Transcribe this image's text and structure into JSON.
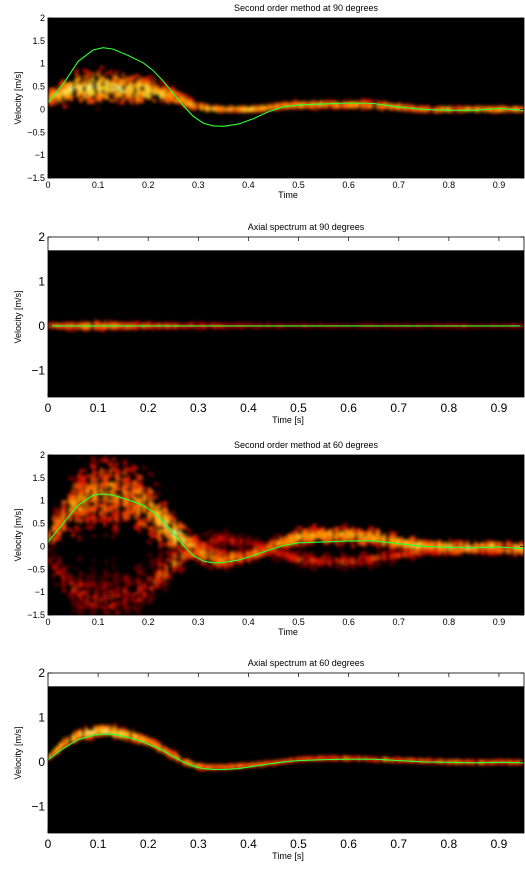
{
  "chart_data": [
    {
      "type": "heatmap",
      "title": "Second order method at 90 degrees",
      "xlabel": "Time",
      "ylabel": "Velocity [m/s]",
      "xlim": [
        0,
        0.95
      ],
      "ylim": [
        -1.5,
        2
      ],
      "x_ticks": [
        "0",
        "0.1",
        "0.2",
        "0.3",
        "0.4",
        "0.5",
        "0.6",
        "0.7",
        "0.8",
        "0.9"
      ],
      "y_ticks": [
        "−1.5",
        "−1",
        "−0.5",
        "0",
        "0.5",
        "1",
        "1.5",
        "2"
      ],
      "background": "#000000",
      "intensity_colormap": [
        "#5a0000",
        "#b00000",
        "#ff3000",
        "#ff9000",
        "#ffe040"
      ],
      "series": [
        {
          "color": "#33ff33",
          "x": [
            0,
            0.03,
            0.06,
            0.09,
            0.11,
            0.13,
            0.16,
            0.19,
            0.21,
            0.23,
            0.25,
            0.27,
            0.29,
            0.31,
            0.33,
            0.35,
            0.38,
            0.41,
            0.44,
            0.47,
            0.5,
            0.55,
            0.6,
            0.65,
            0.7,
            0.75,
            0.8,
            0.85,
            0.9,
            0.95
          ],
          "y": [
            0.15,
            0.55,
            1.05,
            1.3,
            1.35,
            1.32,
            1.18,
            1.02,
            0.85,
            0.62,
            0.35,
            0.08,
            -0.15,
            -0.3,
            -0.36,
            -0.37,
            -0.32,
            -0.2,
            -0.05,
            0.06,
            0.1,
            0.12,
            0.14,
            0.13,
            0.05,
            0.0,
            -0.02,
            -0.02,
            0.02,
            -0.02
          ]
        }
      ],
      "spectrum_ridge": {
        "x": [
          0,
          0.05,
          0.1,
          0.15,
          0.2,
          0.25,
          0.3,
          0.35,
          0.4,
          0.45,
          0.5,
          0.55,
          0.6,
          0.65,
          0.7,
          0.75,
          0.8,
          0.85,
          0.9,
          0.95
        ],
        "center": [
          0.25,
          0.45,
          0.5,
          0.45,
          0.4,
          0.3,
          0.05,
          0.0,
          0.0,
          0.05,
          0.1,
          0.1,
          0.1,
          0.1,
          0.05,
          0.0,
          0.0,
          0.0,
          0.0,
          0.0
        ],
        "spread": [
          0.25,
          0.5,
          0.55,
          0.5,
          0.45,
          0.3,
          0.12,
          0.08,
          0.08,
          0.1,
          0.12,
          0.12,
          0.12,
          0.12,
          0.1,
          0.08,
          0.08,
          0.08,
          0.08,
          0.08
        ],
        "intensity": [
          0.7,
          0.85,
          0.9,
          0.85,
          0.8,
          0.7,
          0.75,
          0.8,
          0.8,
          0.75,
          0.7,
          0.7,
          0.7,
          0.7,
          0.7,
          0.7,
          0.7,
          0.7,
          0.7,
          0.7
        ]
      },
      "mirror": false
    },
    {
      "type": "heatmap",
      "title": "Axial spectrum at 90 degrees",
      "xlabel": "Time [s]",
      "ylabel": "Velocity [m/s]",
      "xlim": [
        0,
        0.95
      ],
      "ylim": [
        -1.6,
        2
      ],
      "data_top": 1.7,
      "x_ticks": [
        "0",
        "0.1",
        "0.2",
        "0.3",
        "0.4",
        "0.5",
        "0.6",
        "0.7",
        "0.8",
        "0.9"
      ],
      "y_ticks": [
        "−1",
        "0",
        "1",
        "2"
      ],
      "background": "#000000",
      "series": [
        {
          "color": "#33ff33",
          "x": [
            0,
            0.95
          ],
          "y": [
            0,
            0
          ]
        }
      ],
      "spectrum_ridge": {
        "x": [
          0,
          0.05,
          0.1,
          0.15,
          0.2,
          0.25,
          0.3,
          0.35,
          0.4,
          0.45,
          0.5,
          0.6,
          0.7,
          0.8,
          0.9,
          0.95
        ],
        "center": [
          0,
          0,
          0,
          0,
          0,
          0,
          0,
          0,
          0,
          0,
          0,
          0,
          0,
          0,
          0,
          0
        ],
        "spread": [
          0.08,
          0.12,
          0.15,
          0.13,
          0.1,
          0.08,
          0.07,
          0.06,
          0.05,
          0.04,
          0.03,
          0.03,
          0.03,
          0.03,
          0.03,
          0.03
        ],
        "intensity": [
          0.55,
          0.6,
          0.65,
          0.6,
          0.5,
          0.45,
          0.4,
          0.35,
          0.3,
          0.25,
          0.2,
          0.2,
          0.2,
          0.2,
          0.2,
          0.2
        ]
      },
      "mirror": false
    },
    {
      "type": "heatmap",
      "title": "Second order method at 60 degrees",
      "xlabel": "Time",
      "ylabel": "Velocity [m/s]",
      "xlim": [
        0,
        0.95
      ],
      "ylim": [
        -1.5,
        2
      ],
      "x_ticks": [
        "0",
        "0.1",
        "0.2",
        "0.3",
        "0.4",
        "0.5",
        "0.6",
        "0.7",
        "0.8",
        "0.9"
      ],
      "y_ticks": [
        "−1.5",
        "−1",
        "−0.5",
        "0",
        "0.5",
        "1",
        "1.5",
        "2"
      ],
      "background": "#000000",
      "series": [
        {
          "color": "#33ff33",
          "x": [
            0,
            0.03,
            0.06,
            0.09,
            0.11,
            0.13,
            0.16,
            0.19,
            0.21,
            0.23,
            0.25,
            0.27,
            0.29,
            0.31,
            0.33,
            0.35,
            0.38,
            0.41,
            0.44,
            0.47,
            0.5,
            0.55,
            0.6,
            0.65,
            0.7,
            0.75,
            0.8,
            0.85,
            0.9,
            0.95
          ],
          "y": [
            0.1,
            0.5,
            0.9,
            1.12,
            1.15,
            1.12,
            1.02,
            0.9,
            0.75,
            0.55,
            0.3,
            0.02,
            -0.2,
            -0.32,
            -0.36,
            -0.35,
            -0.3,
            -0.2,
            -0.08,
            0.02,
            0.08,
            0.1,
            0.12,
            0.12,
            0.06,
            0.0,
            -0.02,
            -0.03,
            -0.01,
            -0.05
          ]
        }
      ],
      "spectrum_ridge": {
        "x": [
          0,
          0.05,
          0.1,
          0.15,
          0.2,
          0.25,
          0.3,
          0.35,
          0.4,
          0.45,
          0.5,
          0.55,
          0.6,
          0.65,
          0.7,
          0.75,
          0.8,
          0.85,
          0.9,
          0.95
        ],
        "center": [
          0.2,
          0.9,
          1.2,
          1.1,
          0.9,
          0.3,
          -0.1,
          -0.3,
          -0.2,
          0.0,
          0.2,
          0.25,
          0.25,
          0.2,
          0.1,
          0.0,
          -0.02,
          -0.03,
          -0.01,
          -0.05
        ],
        "spread": [
          0.4,
          0.9,
          1.3,
          1.2,
          1.0,
          0.6,
          0.4,
          0.3,
          0.25,
          0.25,
          0.3,
          0.3,
          0.3,
          0.3,
          0.25,
          0.2,
          0.2,
          0.2,
          0.2,
          0.2
        ],
        "intensity": [
          0.6,
          0.65,
          0.6,
          0.6,
          0.65,
          0.9,
          0.7,
          0.6,
          0.55,
          0.6,
          0.7,
          0.7,
          0.7,
          0.7,
          0.75,
          0.8,
          0.8,
          0.8,
          0.8,
          0.8
        ]
      },
      "mirror": true
    },
    {
      "type": "heatmap",
      "title": "Axial spectrum at 60 degrees",
      "xlabel": "Time [s]",
      "ylabel": "Velocity [m/s]",
      "xlim": [
        0,
        0.95
      ],
      "ylim": [
        -1.6,
        2
      ],
      "data_top": 1.7,
      "x_ticks": [
        "0",
        "0.1",
        "0.2",
        "0.3",
        "0.4",
        "0.5",
        "0.6",
        "0.7",
        "0.8",
        "0.9"
      ],
      "y_ticks": [
        "−1",
        "0",
        "1",
        "2"
      ],
      "background": "#000000",
      "series": [
        {
          "color": "#33ff33",
          "x": [
            0,
            0.03,
            0.06,
            0.09,
            0.11,
            0.13,
            0.16,
            0.19,
            0.21,
            0.23,
            0.25,
            0.27,
            0.29,
            0.31,
            0.33,
            0.35,
            0.38,
            0.41,
            0.44,
            0.47,
            0.5,
            0.55,
            0.6,
            0.65,
            0.7,
            0.75,
            0.8,
            0.85,
            0.9,
            0.95
          ],
          "y": [
            0.05,
            0.3,
            0.5,
            0.6,
            0.63,
            0.62,
            0.55,
            0.45,
            0.35,
            0.25,
            0.12,
            0.0,
            -0.1,
            -0.15,
            -0.17,
            -0.17,
            -0.15,
            -0.1,
            -0.05,
            0.0,
            0.03,
            0.05,
            0.06,
            0.06,
            0.03,
            0.0,
            -0.01,
            -0.02,
            -0.01,
            -0.02
          ]
        }
      ],
      "spectrum_ridge": {
        "x": [
          0,
          0.03,
          0.06,
          0.09,
          0.11,
          0.13,
          0.16,
          0.19,
          0.21,
          0.23,
          0.25,
          0.27,
          0.29,
          0.31,
          0.35,
          0.4,
          0.45,
          0.5,
          0.55,
          0.6,
          0.65,
          0.7,
          0.75,
          0.8,
          0.85,
          0.9,
          0.95
        ],
        "center": [
          0.1,
          0.4,
          0.6,
          0.67,
          0.7,
          0.68,
          0.6,
          0.5,
          0.4,
          0.28,
          0.15,
          0.02,
          -0.08,
          -0.12,
          -0.12,
          -0.08,
          -0.02,
          0.05,
          0.08,
          0.08,
          0.06,
          0.04,
          0.02,
          0.0,
          -0.01,
          -0.01,
          -0.01
        ],
        "spread": [
          0.1,
          0.15,
          0.18,
          0.2,
          0.2,
          0.2,
          0.18,
          0.17,
          0.15,
          0.14,
          0.13,
          0.12,
          0.1,
          0.08,
          0.06,
          0.05,
          0.05,
          0.05,
          0.05,
          0.05,
          0.05,
          0.05,
          0.05,
          0.05,
          0.05,
          0.05,
          0.05
        ],
        "intensity": [
          0.7,
          0.8,
          0.85,
          0.85,
          0.85,
          0.85,
          0.8,
          0.75,
          0.7,
          0.7,
          0.7,
          0.7,
          0.7,
          0.7,
          0.65,
          0.6,
          0.55,
          0.55,
          0.55,
          0.55,
          0.55,
          0.55,
          0.55,
          0.55,
          0.55,
          0.55,
          0.55
        ]
      },
      "mirror": false
    }
  ]
}
